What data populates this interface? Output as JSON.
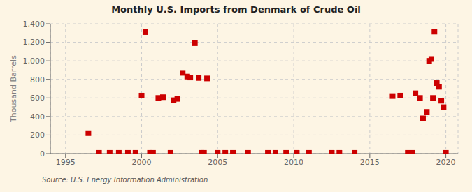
{
  "chart_data": {
    "type": "scatter",
    "title": "Monthly U.S. Imports from Denmark of Crude Oil",
    "y_label": "Thousand Barrels",
    "annotations": [
      "Source: U.S. Energy Information Administration"
    ],
    "color": "#cc0000",
    "marker": "square",
    "grid": true,
    "xlim": [
      1994.0,
      2020.8
    ],
    "ylim": [
      0,
      1400
    ],
    "xticks": [
      1995,
      2000,
      2005,
      2010,
      2015,
      2020
    ],
    "yticks": [
      0,
      200,
      400,
      600,
      800,
      {
        "value": 1000,
        "label": "1,000"
      },
      {
        "value": 1200,
        "label": "1,200"
      },
      {
        "value": 1400,
        "label": "1,400"
      }
    ],
    "x": [
      1996.5,
      1997.2,
      1997.9,
      1998.5,
      1999.1,
      1999.6,
      2000.0,
      2000.25,
      2000.55,
      2000.75,
      2001.1,
      2001.4,
      2001.9,
      2002.1,
      2002.35,
      2002.7,
      2003.0,
      2003.2,
      2003.5,
      2003.75,
      2003.95,
      2004.1,
      2004.3,
      2005.0,
      2005.5,
      2006.0,
      2007.0,
      2008.3,
      2008.8,
      2009.5,
      2010.2,
      2011.0,
      2012.5,
      2013.0,
      2014.0,
      2016.5,
      2017.0,
      2017.5,
      2017.8,
      2018.0,
      2018.3,
      2018.5,
      2018.75,
      2018.9,
      2019.05,
      2019.15,
      2019.25,
      2019.4,
      2019.55,
      2019.7,
      2019.85,
      2020.0
    ],
    "values": [
      220,
      8,
      8,
      8,
      8,
      8,
      625,
      1310,
      8,
      8,
      600,
      608,
      8,
      575,
      590,
      870,
      830,
      820,
      1190,
      815,
      8,
      8,
      810,
      8,
      8,
      8,
      8,
      8,
      8,
      8,
      8,
      8,
      8,
      8,
      8,
      620,
      625,
      8,
      8,
      650,
      600,
      380,
      450,
      1000,
      1020,
      600,
      1315,
      760,
      720,
      570,
      500,
      8
    ]
  }
}
